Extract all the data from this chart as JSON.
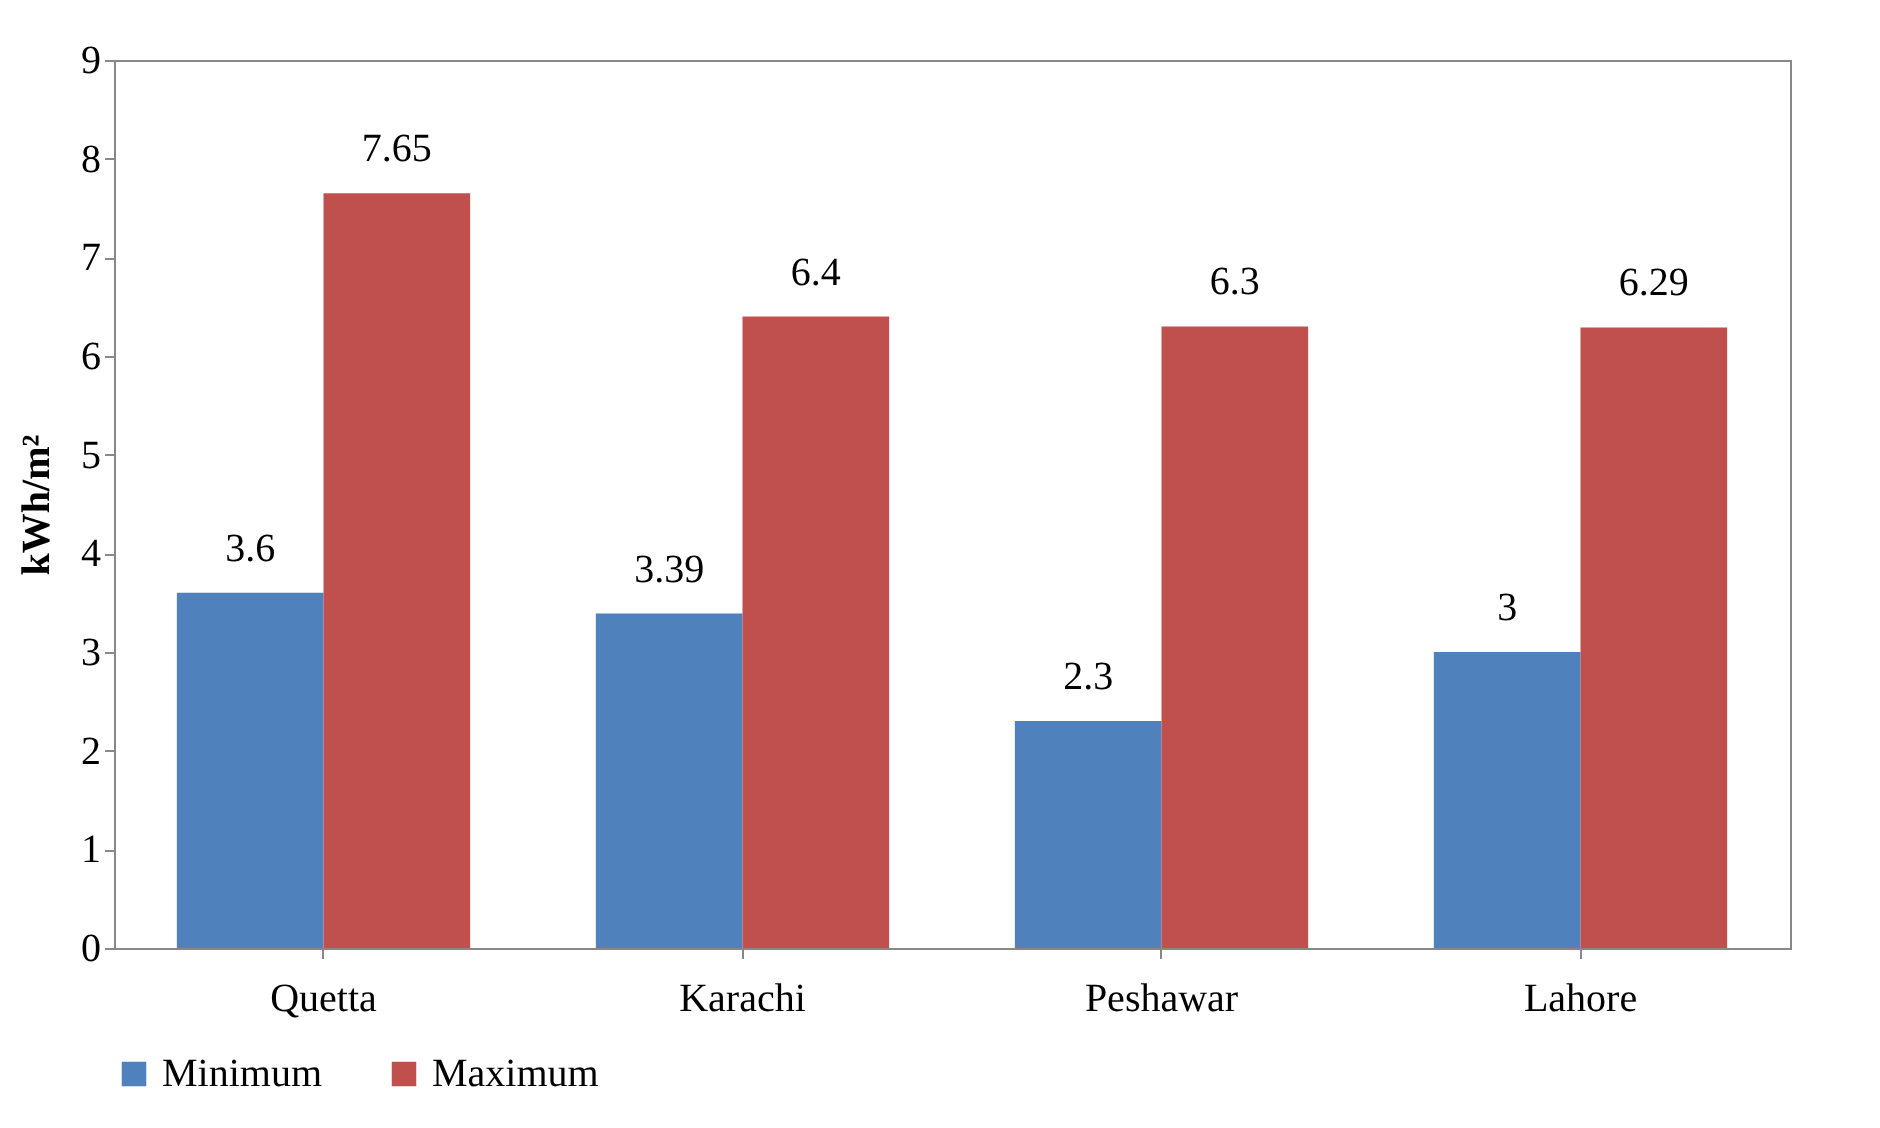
{
  "chart_data": {
    "type": "bar",
    "ylabel": "kWh/m²",
    "categories": [
      "Quetta",
      "Karachi",
      "Peshawar",
      "Lahore"
    ],
    "series": [
      {
        "name": "Minimum",
        "color": "#4f81bd",
        "values": [
          3.6,
          3.39,
          2.3,
          3
        ]
      },
      {
        "name": "Maximum",
        "color": "#c0504d",
        "values": [
          7.65,
          6.4,
          6.3,
          6.29
        ]
      }
    ],
    "ylim": [
      0,
      9
    ],
    "yticks": [
      0,
      1,
      2,
      3,
      4,
      5,
      6,
      7,
      8,
      9
    ],
    "data_labels": true,
    "legend": "bottom",
    "grid": false
  }
}
